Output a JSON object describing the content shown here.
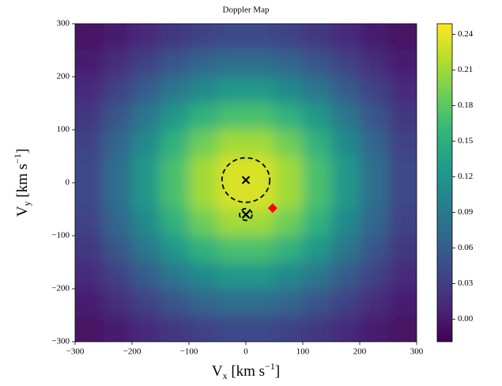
{
  "chart_data": {
    "type": "heatmap",
    "title": "Doppler Map",
    "xlabel": [
      "V",
      "x",
      " [km s",
      "−1",
      "]"
    ],
    "ylabel": [
      "V",
      "y",
      " [km s",
      "−1",
      "]"
    ],
    "x": [
      -275,
      -225,
      -175,
      -125,
      -75,
      -25,
      25,
      75,
      125,
      175,
      225,
      275
    ],
    "y": [
      275,
      225,
      175,
      125,
      75,
      25,
      -25,
      -75,
      -125,
      -175,
      -225,
      -275
    ],
    "z": [
      [
        -0.006,
        0.003,
        0.014,
        0.025,
        0.035,
        0.04,
        0.04,
        0.035,
        0.025,
        0.014,
        0.003,
        -0.006
      ],
      [
        0.003,
        0.017,
        0.035,
        0.053,
        0.068,
        0.077,
        0.077,
        0.068,
        0.053,
        0.035,
        0.017,
        0.003
      ],
      [
        0.014,
        0.035,
        0.06,
        0.087,
        0.109,
        0.123,
        0.123,
        0.109,
        0.087,
        0.06,
        0.035,
        0.014
      ],
      [
        0.025,
        0.053,
        0.087,
        0.123,
        0.153,
        0.17,
        0.17,
        0.153,
        0.123,
        0.087,
        0.053,
        0.025
      ],
      [
        0.035,
        0.068,
        0.109,
        0.153,
        0.189,
        0.211,
        0.211,
        0.189,
        0.153,
        0.109,
        0.068,
        0.035
      ],
      [
        0.04,
        0.077,
        0.123,
        0.17,
        0.211,
        0.234,
        0.234,
        0.211,
        0.17,
        0.123,
        0.077,
        0.04
      ],
      [
        0.04,
        0.077,
        0.123,
        0.17,
        0.211,
        0.234,
        0.234,
        0.211,
        0.17,
        0.123,
        0.077,
        0.04
      ],
      [
        0.035,
        0.068,
        0.109,
        0.153,
        0.189,
        0.211,
        0.211,
        0.189,
        0.153,
        0.109,
        0.068,
        0.035
      ],
      [
        0.025,
        0.053,
        0.087,
        0.123,
        0.153,
        0.17,
        0.17,
        0.153,
        0.123,
        0.087,
        0.053,
        0.025
      ],
      [
        0.014,
        0.035,
        0.06,
        0.087,
        0.109,
        0.123,
        0.123,
        0.109,
        0.087,
        0.06,
        0.035,
        0.014
      ],
      [
        0.003,
        0.017,
        0.035,
        0.053,
        0.068,
        0.077,
        0.077,
        0.068,
        0.053,
        0.035,
        0.017,
        0.003
      ],
      [
        -0.006,
        0.003,
        0.014,
        0.025,
        0.035,
        0.04,
        0.04,
        0.035,
        0.025,
        0.014,
        0.003,
        -0.006
      ]
    ],
    "colormap": "viridis",
    "clim": [
      -0.019,
      0.249
    ],
    "cticks": [
      {
        "value": 0,
        "label": "0.00"
      },
      0.03,
      0.06,
      0.09,
      0.12,
      0.15,
      0.18,
      0.21,
      0.24
    ],
    "xlim": [
      -300,
      300
    ],
    "ylim": [
      -300,
      300
    ],
    "xticks": [
      {
        "value": -300,
        "label": "−300"
      },
      {
        "value": -200,
        "label": "−200"
      },
      {
        "value": -100,
        "label": "−100"
      },
      0,
      100,
      200,
      300
    ],
    "yticks": [
      {
        "value": -300,
        "label": "−300"
      },
      {
        "value": -200,
        "label": "−200"
      },
      {
        "value": -100,
        "label": "−100"
      },
      0,
      100,
      200,
      300
    ],
    "markers": [
      {
        "x": 0,
        "y": 5,
        "marker": "x",
        "color": "#000000"
      },
      {
        "x": 0,
        "y": -60,
        "marker": "x",
        "color": "#000000"
      },
      {
        "x": 47,
        "y": -48,
        "marker": "diamond",
        "color": "#ff0000"
      }
    ],
    "lobes": [
      {
        "x": 0,
        "y": 5,
        "r": 42
      },
      {
        "x": 0,
        "y": -60,
        "r": 11
      }
    ]
  }
}
